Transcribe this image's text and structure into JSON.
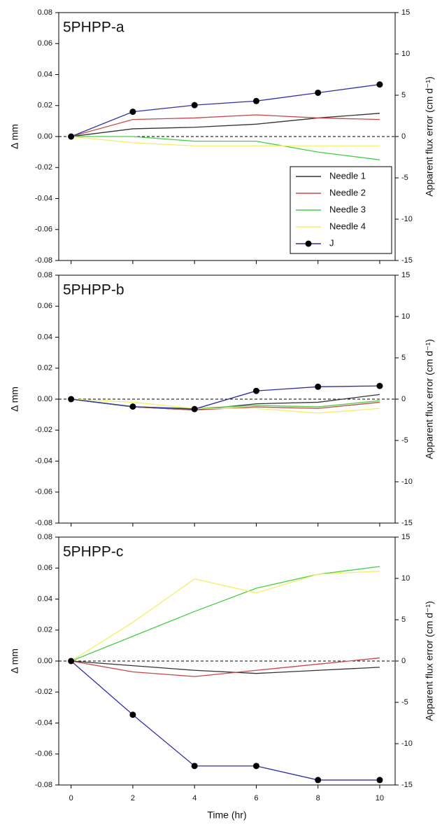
{
  "chart_data": [
    {
      "type": "line",
      "title": "5PHPP-a",
      "y_label": "Δ mm",
      "y2_label": "Apparent flux error (cm d⁻¹)",
      "x": [
        0,
        2,
        4,
        6,
        8,
        10
      ],
      "xlim": [
        -0.4,
        10.5
      ],
      "xticks": [
        0,
        2,
        4,
        6,
        8,
        10
      ],
      "ylim": [
        -0.08,
        0.08
      ],
      "yticks": [
        -0.08,
        -0.06,
        -0.04,
        -0.02,
        {
          "value": 0,
          "label": "0.00"
        },
        0.02,
        0.04,
        0.06,
        0.08
      ],
      "y2lim": [
        -15,
        15
      ],
      "y2ticks": [
        -15,
        -10,
        -5,
        0,
        5,
        10,
        15
      ],
      "zero_line": true,
      "legend": "lower right",
      "series": [
        {
          "name": "Needle 1",
          "color": "#333333",
          "values": [
            0,
            0.005,
            0.006,
            0.008,
            0.012,
            0.015
          ]
        },
        {
          "name": "Needle 2",
          "color": "#c84848",
          "values": [
            0,
            0.011,
            0.012,
            0.014,
            0.012,
            0.011
          ]
        },
        {
          "name": "Needle 3",
          "color": "#44d044",
          "values": [
            0,
            0.0,
            -0.003,
            -0.003,
            -0.01,
            -0.015
          ]
        },
        {
          "name": "Needle 4",
          "color": "#f2f066",
          "values": [
            0,
            -0.004,
            -0.006,
            -0.006,
            -0.006,
            -0.006
          ]
        },
        {
          "name": "J",
          "color": "#2f2fa8",
          "axis": "y2",
          "marker": true,
          "values": [
            0,
            3.0,
            3.8,
            4.3,
            5.3,
            6.3
          ]
        }
      ]
    },
    {
      "type": "line",
      "title": "5PHPP-b",
      "y_label": "Δ mm",
      "y2_label": "Apparent flux error (cm d⁻¹)",
      "x": [
        0,
        2,
        4,
        6,
        8,
        10
      ],
      "xlim": [
        -0.4,
        10.5
      ],
      "xticks": [
        0,
        2,
        4,
        6,
        8,
        10
      ],
      "ylim": [
        -0.08,
        0.08
      ],
      "yticks": [
        -0.08,
        -0.06,
        -0.04,
        -0.02,
        {
          "value": 0,
          "label": "0.00"
        },
        0.02,
        0.04,
        0.06,
        0.08
      ],
      "y2lim": [
        -15,
        15
      ],
      "y2ticks": [
        -15,
        -10,
        -5,
        0,
        5,
        10,
        15
      ],
      "zero_line": true,
      "series": [
        {
          "color": "#333333",
          "values": [
            0,
            -0.005,
            -0.007,
            -0.003,
            -0.002,
            0.003
          ]
        },
        {
          "color": "#c84848",
          "values": [
            0,
            -0.005,
            -0.007,
            -0.005,
            -0.006,
            -0.002
          ]
        },
        {
          "color": "#44d044",
          "values": [
            0,
            -0.005,
            -0.006,
            -0.004,
            -0.005,
            -0.001
          ]
        },
        {
          "color": "#f2f066",
          "values": [
            0,
            -0.002,
            -0.006,
            -0.006,
            -0.009,
            -0.006
          ]
        },
        {
          "color": "#2f2fa8",
          "axis": "y2",
          "marker": true,
          "values": [
            0,
            -0.9,
            -1.2,
            1.0,
            1.5,
            1.6
          ]
        }
      ]
    },
    {
      "type": "line",
      "title": "5PHPP-c",
      "y_label": "Δ mm",
      "y2_label": "Apparent flux error (cm d⁻¹)",
      "x_label": "Time (hr)",
      "x": [
        0,
        2,
        4,
        6,
        8,
        10
      ],
      "xlim": [
        -0.4,
        10.5
      ],
      "xticks": [
        0,
        2,
        4,
        6,
        8,
        10
      ],
      "ylim": [
        -0.08,
        0.08
      ],
      "yticks": [
        -0.08,
        -0.06,
        -0.04,
        -0.02,
        {
          "value": 0,
          "label": "0.00"
        },
        0.02,
        0.04,
        0.06,
        0.08
      ],
      "y2lim": [
        -15,
        15
      ],
      "y2ticks": [
        -15,
        -10,
        -5,
        0,
        5,
        10,
        15
      ],
      "zero_line": true,
      "series": [
        {
          "color": "#333333",
          "values": [
            0,
            -0.003,
            -0.006,
            -0.008,
            -0.006,
            -0.004
          ]
        },
        {
          "color": "#c84848",
          "values": [
            0,
            -0.007,
            -0.01,
            -0.006,
            -0.002,
            0.002
          ]
        },
        {
          "color": "#44d044",
          "values": [
            0,
            0.016,
            0.032,
            0.047,
            0.056,
            0.061
          ]
        },
        {
          "color": "#f2f066",
          "values": [
            0,
            0.025,
            0.053,
            0.044,
            0.056,
            0.058
          ]
        },
        {
          "color": "#2f2fa8",
          "axis": "y2",
          "marker": true,
          "values": [
            0,
            -6.5,
            -12.7,
            -12.7,
            -14.4,
            -14.4
          ]
        }
      ]
    }
  ]
}
